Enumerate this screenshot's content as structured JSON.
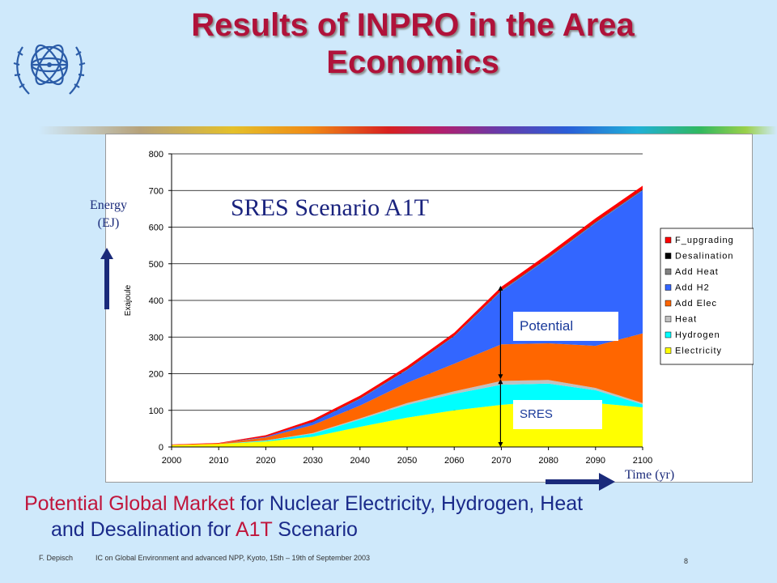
{
  "slide": {
    "title_line1": "Results of INPRO in the Area",
    "title_line2": "Economics",
    "energy_label_1": "Energy",
    "energy_label_2": "(EJ)",
    "scenario_label": "SRES Scenario A1T",
    "time_label": "Time (yr)",
    "potential_box": "Potential",
    "sres_box": "SRES",
    "caption": {
      "p1": "Potential Global Market",
      "p2": " for Nuclear Electricity, Hydrogen, Heat",
      "p3": "and Desalination for ",
      "p4": "A1T",
      "p5": " Scenario"
    },
    "footer_author": "F. Depisch",
    "footer_conference": "IC on Global Environment and advanced NPP, Kyoto, 15th – 19th of September 2003",
    "page_number": "8",
    "icons": [
      "iaea-logo",
      "arrow-up-icon",
      "arrow-right-icon"
    ]
  },
  "chart_data": {
    "type": "area",
    "stacked": true,
    "ylabel": "Exajoule",
    "ylim": [
      0,
      800
    ],
    "yticks": [
      0,
      100,
      200,
      300,
      400,
      500,
      600,
      700,
      800
    ],
    "x": [
      2000,
      2010,
      2020,
      2030,
      2040,
      2050,
      2060,
      2070,
      2080,
      2090,
      2100
    ],
    "series": [
      {
        "name": "Electricity",
        "color": "#ffff00",
        "values": [
          5,
          8,
          15,
          28,
          55,
          80,
          100,
          115,
          125,
          120,
          108
        ]
      },
      {
        "name": "Hydrogen",
        "color": "#00ffff",
        "values": [
          0,
          0,
          2,
          8,
          20,
          35,
          45,
          55,
          48,
          35,
          8
        ]
      },
      {
        "name": "Heat",
        "color": "#c0c0c0",
        "values": [
          0,
          0,
          1,
          2,
          3,
          5,
          7,
          10,
          10,
          6,
          4
        ]
      },
      {
        "name": "Add Elec",
        "color": "#ff6600",
        "values": [
          1,
          2,
          8,
          22,
          35,
          55,
          75,
          100,
          100,
          115,
          190
        ]
      },
      {
        "name": "Add H2",
        "color": "#3366ff",
        "values": [
          0,
          0,
          2,
          8,
          18,
          35,
          75,
          145,
          232,
          335,
          390
        ]
      },
      {
        "name": "Add Heat",
        "color": "#808080",
        "values": [
          0,
          0,
          0,
          0,
          1,
          1,
          1,
          2,
          2,
          2,
          2
        ]
      },
      {
        "name": "Desalination",
        "color": "#000000",
        "values": [
          0,
          0,
          0,
          1,
          1,
          1,
          1,
          1,
          1,
          1,
          1
        ]
      },
      {
        "name": "F_upgrading",
        "color": "#ff0000",
        "values": [
          1,
          1,
          4,
          6,
          7,
          8,
          8,
          9,
          10,
          10,
          10
        ]
      }
    ],
    "legend": [
      "F_upgrading",
      "Desalination",
      "Add Heat",
      "Add H2",
      "Add Elec",
      "Heat",
      "Hydrogen",
      "Electricity"
    ],
    "legend_position": "right",
    "grid": true,
    "annotations": [
      "Potential",
      "SRES",
      "SRES Scenario A1T"
    ]
  }
}
